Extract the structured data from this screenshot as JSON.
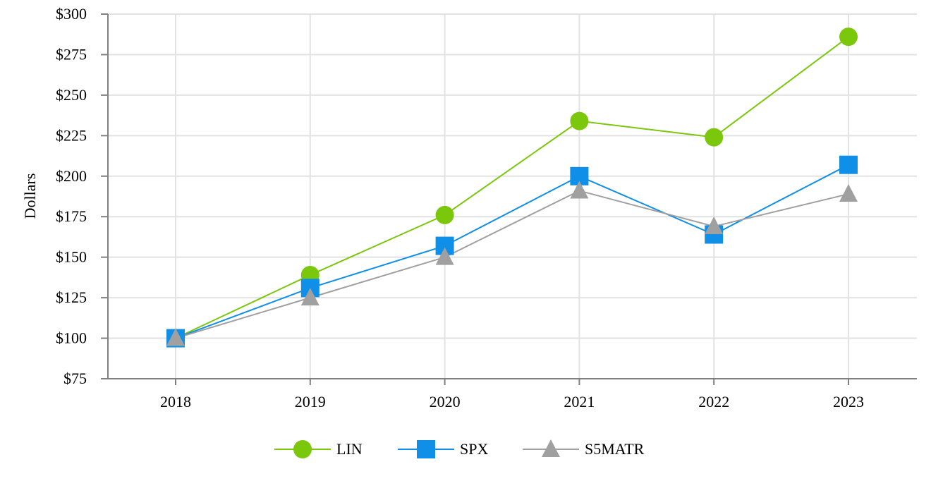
{
  "chart_data": {
    "type": "line",
    "title": "",
    "xlabel": "",
    "ylabel": "Dollars",
    "categories": [
      "2018",
      "2019",
      "2020",
      "2021",
      "2022",
      "2023"
    ],
    "ylim": [
      75,
      300
    ],
    "yticks": [
      300,
      275,
      250,
      225,
      200,
      175,
      150,
      125,
      100,
      75
    ],
    "ytick_labels": [
      "$300",
      "$275",
      "$250",
      "$225",
      "$200",
      "$175",
      "$150",
      "$125",
      "$100",
      "$75"
    ],
    "grid": true,
    "legend_position": "bottom-center",
    "series": [
      {
        "name": "LIN",
        "values": [
          100,
          139,
          176,
          234,
          224,
          286
        ],
        "color": "#7ac70c",
        "marker": "circle"
      },
      {
        "name": "SPX",
        "values": [
          100,
          131,
          157,
          200,
          164,
          207
        ],
        "color": "#0f8fe8",
        "marker": "square"
      },
      {
        "name": "S5MATR",
        "values": [
          100,
          125,
          150,
          191,
          169,
          189
        ],
        "color": "#a0a0a0",
        "marker": "triangle"
      }
    ]
  }
}
